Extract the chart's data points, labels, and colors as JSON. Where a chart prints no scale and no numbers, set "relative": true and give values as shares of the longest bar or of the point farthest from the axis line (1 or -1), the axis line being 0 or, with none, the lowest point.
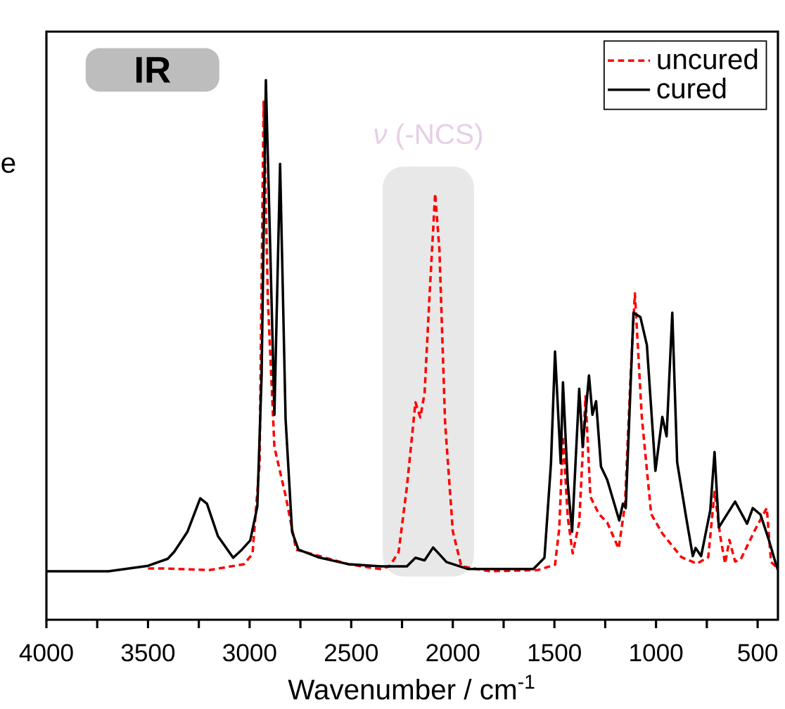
{
  "chart_data": {
    "type": "line",
    "relative": true,
    "xlabel": "Wavenumber / cm$^{-1}$",
    "ylabel": "e",
    "xlim": [
      4000,
      400
    ],
    "xticks": [
      4000,
      {
        "value": 3750,
        "label": null
      },
      3500,
      {
        "value": 3250,
        "label": null
      },
      3000,
      {
        "value": 2750,
        "label": null
      },
      2500,
      {
        "value": 2250,
        "label": null
      },
      2000,
      {
        "value": 1750,
        "label": null
      },
      1500,
      {
        "value": 1250,
        "label": null
      },
      1000,
      {
        "value": 750,
        "label": null
      },
      500
    ],
    "tick_labels": "x",
    "legend": "top right",
    "grid": false,
    "annotations": [
      "IR"
    ],
    "bands": [
      {
        "axis": "x",
        "from": 2345,
        "to": 1896,
        "label": "*ν* (-NCS)",
        "color": "#e8e8e8"
      }
    ],
    "series": [
      {
        "name": "uncured",
        "color": "#ff0000",
        "line_style": "dashed",
        "x": [
          3500,
          3410,
          3198,
          3028,
          2986,
          2951,
          2931,
          2910,
          2878,
          2850,
          2823,
          2771,
          2514,
          2360,
          2312,
          2267,
          2226,
          2184,
          2160,
          2139,
          2114,
          2087,
          2066,
          2038,
          2000,
          1958,
          1819,
          1583,
          1497,
          1476,
          1458,
          1434,
          1410,
          1378,
          1347,
          1323,
          1281,
          1240,
          1184,
          1153,
          1125,
          1104,
          1070,
          1024,
          969,
          875,
          799,
          743,
          712,
          684,
          660,
          639,
          611,
          583,
          507,
          455,
          434,
          400
        ],
        "values": [
          0.095,
          0.095,
          0.092,
          0.103,
          0.122,
          0.29,
          0.96,
          0.59,
          0.32,
          null,
          0.23,
          0.13,
          0.103,
          0.094,
          0.099,
          0.125,
          0.246,
          0.403,
          0.375,
          0.42,
          0.605,
          0.79,
          0.686,
          0.365,
          0.164,
          0.099,
          0.09,
          0.092,
          0.102,
          0.17,
          0.34,
          0.188,
          0.123,
          0.18,
          0.414,
          0.228,
          0.196,
          0.18,
          0.132,
          0.212,
          0.453,
          0.605,
          0.376,
          0.196,
          0.16,
          0.116,
          0.104,
          0.116,
          0.237,
          0.155,
          0.104,
          0.148,
          0.108,
          0.112,
          0.171,
          0.207,
          0.107,
          0.095
        ]
      },
      {
        "name": "cured",
        "color": "#000000",
        "line_style": "solid",
        "x": [
          4000,
          3694,
          3500,
          3403,
          3371,
          3306,
          3243,
          3210,
          3156,
          3081,
          3038,
          2997,
          2962,
          2941,
          2920,
          2899,
          2878,
          2850,
          2823,
          2791,
          2760,
          2663,
          2514,
          2354,
          2226,
          2184,
          2139,
          2097,
          2031,
          1924,
          1712,
          1604,
          1549,
          1517,
          1497,
          1469,
          1458,
          1434,
          1413,
          1378,
          1361,
          1330,
          1313,
          1295,
          1271,
          1240,
          1181,
          1163,
          1149,
          1111,
          1077,
          1045,
          1003,
          969,
          948,
          920,
          896,
          851,
          819,
          805,
          778,
          733,
          712,
          691,
          663,
          611,
          552,
          524,
          486,
          444,
          413,
          400
        ],
        "values": [
          0.09,
          0.09,
          0.1,
          0.113,
          0.126,
          0.163,
          0.225,
          0.215,
          0.155,
          0.115,
          0.13,
          0.147,
          0.21,
          0.453,
          1.0,
          0.694,
          0.38,
          0.845,
          0.372,
          0.163,
          0.13,
          0.116,
          0.103,
          0.099,
          0.099,
          0.115,
          0.11,
          0.134,
          0.107,
          0.094,
          0.094,
          0.094,
          0.115,
          0.29,
          0.497,
          0.29,
          0.44,
          0.251,
          0.163,
          0.428,
          0.32,
          0.453,
          0.38,
          0.405,
          0.284,
          0.259,
          0.184,
          0.215,
          0.207,
          0.569,
          0.561,
          0.509,
          0.276,
          0.376,
          0.34,
          0.569,
          0.292,
          0.188,
          0.118,
          0.133,
          0.118,
          0.203,
          0.311,
          0.171,
          0.188,
          0.219,
          0.178,
          0.207,
          0.195,
          0.147,
          0.107,
          0.092
        ]
      }
    ]
  }
}
